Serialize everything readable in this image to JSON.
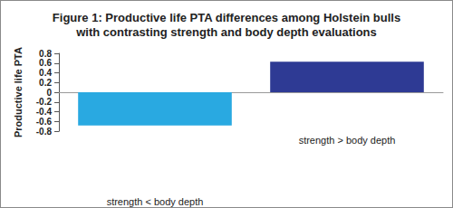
{
  "chart_data": {
    "type": "bar",
    "title": "Figure 1: Productive life PTA differences among Holstein bulls\nwith contrasting strength and body depth evaluations",
    "ylabel": "Productive life PTA",
    "categories": [
      "strength < body depth",
      "strength > body depth"
    ],
    "values": [
      -0.68,
      0.63
    ],
    "colors": [
      "#29a9e1",
      "#2e3a94"
    ],
    "ylim": [
      -0.8,
      0.8
    ],
    "yticks": [
      -0.8,
      -0.6,
      -0.4,
      -0.2,
      0,
      0.2,
      0.4,
      0.6,
      0.8
    ],
    "grid": false
  }
}
